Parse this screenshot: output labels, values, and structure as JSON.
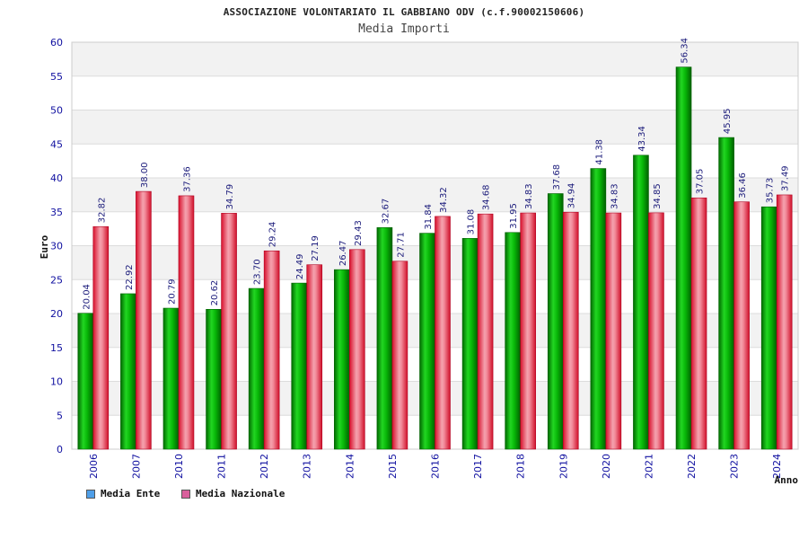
{
  "header": {
    "title": "ASSOCIAZIONE VOLONTARIATO IL GABBIANO ODV (c.f.90002150606)",
    "subtitle": "Media Importi"
  },
  "legend": {
    "ente_label": "Media Ente",
    "nazionale_label": "Media Nazionale"
  },
  "colors": {
    "ente": "#00b000",
    "nazionale": "#e8304a",
    "ente_legend": "#4f9fe8",
    "nazionale_legend": "#d9609c",
    "tick_text": "#1010a0",
    "band": "#f2f2f2"
  },
  "chart_data": {
    "type": "bar",
    "title": "Media Importi",
    "xlabel": "Anno",
    "ylabel": "Euro",
    "ylim": [
      0,
      60
    ],
    "yticks": [
      0,
      5,
      10,
      15,
      20,
      25,
      30,
      35,
      40,
      45,
      50,
      55,
      60
    ],
    "categories": [
      "2006",
      "2007",
      "2010",
      "2011",
      "2012",
      "2013",
      "2014",
      "2015",
      "2016",
      "2017",
      "2018",
      "2019",
      "2020",
      "2021",
      "2022",
      "2023",
      "2024"
    ],
    "series": [
      {
        "name": "Media Ente",
        "values": [
          20.04,
          22.92,
          20.79,
          20.62,
          23.7,
          24.49,
          26.47,
          32.67,
          31.84,
          31.08,
          31.95,
          37.68,
          41.38,
          43.34,
          56.34,
          45.95,
          35.73
        ],
        "labels": [
          "20.04",
          "22.92",
          "20.79",
          "20.62",
          "23.70",
          "24.49",
          "26.47",
          "32.67",
          "31.84",
          "31.08",
          "31.95",
          "37.68",
          "41.38",
          "43.34",
          "56.34",
          "45.95",
          "35.73"
        ]
      },
      {
        "name": "Media Nazionale",
        "values": [
          32.82,
          38.0,
          37.36,
          34.79,
          29.24,
          27.19,
          29.43,
          27.71,
          34.32,
          34.68,
          34.83,
          34.94,
          34.83,
          34.85,
          37.05,
          36.46,
          37.49
        ],
        "labels": [
          "32.82",
          "38.00",
          "37.36",
          "34.79",
          "29.24",
          "27.19",
          "29.43",
          "27.71",
          "34.32",
          "34.68",
          "34.83",
          "34.94",
          "34.83",
          "34.85",
          "37.05",
          "36.46",
          "37.49"
        ]
      }
    ],
    "grid": true,
    "legend_position": "bottom-left"
  }
}
